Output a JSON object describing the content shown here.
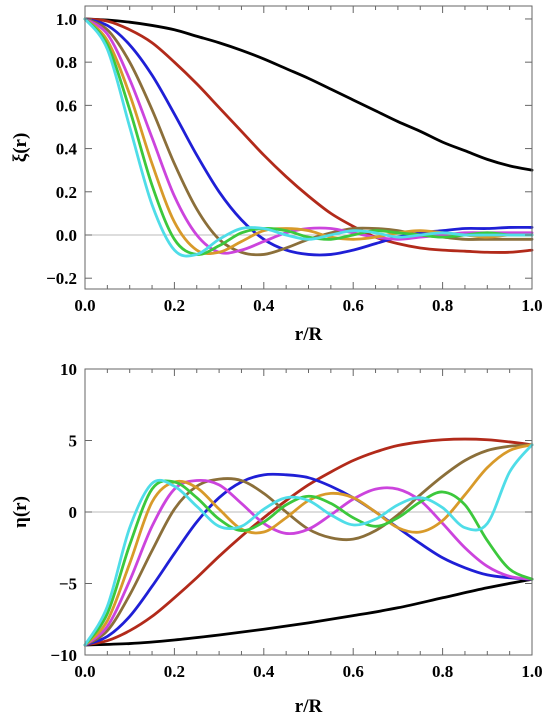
{
  "chart_data": [
    {
      "type": "line",
      "title": "",
      "xlabel": "r/R",
      "ylabel": "ξ(r)",
      "xlim": [
        0.0,
        1.0
      ],
      "ylim": [
        -0.25,
        1.06
      ],
      "x_ticks": [
        "0.0",
        "0.2",
        "0.4",
        "0.6",
        "0.8",
        "1.0"
      ],
      "y_ticks": [
        "1.0",
        "0.8",
        "0.6",
        "0.4",
        "0.2",
        "0.0",
        "−0.2"
      ],
      "x_tick_values": [
        0,
        0.2,
        0.4,
        0.6,
        0.8,
        1.0
      ],
      "y_tick_values": [
        1.0,
        0.8,
        0.6,
        0.4,
        0.2,
        0.0,
        -0.2
      ],
      "zero_line": true,
      "grid": false,
      "legend": "none",
      "series": [
        {
          "color": "#000000",
          "x": [
            0,
            0.05,
            0.1,
            0.15,
            0.2,
            0.25,
            0.3,
            0.35,
            0.4,
            0.45,
            0.5,
            0.55,
            0.6,
            0.65,
            0.7,
            0.75,
            0.8,
            0.85,
            0.9,
            0.95,
            1.0
          ],
          "y": [
            1.0,
            0.995,
            0.985,
            0.97,
            0.95,
            0.92,
            0.89,
            0.855,
            0.815,
            0.77,
            0.725,
            0.675,
            0.625,
            0.575,
            0.525,
            0.48,
            0.43,
            0.39,
            0.35,
            0.32,
            0.3
          ]
        },
        {
          "color": "#b22a1a",
          "x": [
            0,
            0.05,
            0.1,
            0.15,
            0.2,
            0.25,
            0.3,
            0.35,
            0.4,
            0.45,
            0.5,
            0.55,
            0.6,
            0.65,
            0.7,
            0.75,
            0.8,
            0.85,
            0.9,
            0.95,
            1.0
          ],
          "y": [
            1.0,
            0.99,
            0.95,
            0.89,
            0.8,
            0.7,
            0.59,
            0.48,
            0.37,
            0.27,
            0.18,
            0.1,
            0.04,
            -0.01,
            -0.04,
            -0.06,
            -0.07,
            -0.075,
            -0.08,
            -0.08,
            -0.07
          ]
        },
        {
          "color": "#1f1fd6",
          "x": [
            0,
            0.05,
            0.1,
            0.15,
            0.2,
            0.25,
            0.3,
            0.35,
            0.4,
            0.45,
            0.5,
            0.55,
            0.6,
            0.65,
            0.7,
            0.75,
            0.8,
            0.85,
            0.9,
            0.95,
            1.0
          ],
          "y": [
            1.0,
            0.97,
            0.88,
            0.74,
            0.56,
            0.37,
            0.2,
            0.07,
            -0.02,
            -0.07,
            -0.09,
            -0.09,
            -0.07,
            -0.04,
            -0.01,
            0.01,
            0.02,
            0.03,
            0.03,
            0.035,
            0.035
          ]
        },
        {
          "color": "#8b6f3a",
          "x": [
            0,
            0.05,
            0.1,
            0.15,
            0.2,
            0.25,
            0.3,
            0.35,
            0.4,
            0.45,
            0.5,
            0.55,
            0.6,
            0.65,
            0.7,
            0.75,
            0.8,
            0.85,
            0.9,
            0.95,
            1.0
          ],
          "y": [
            1.0,
            0.95,
            0.8,
            0.58,
            0.33,
            0.12,
            -0.02,
            -0.08,
            -0.09,
            -0.06,
            -0.02,
            0.01,
            0.03,
            0.03,
            0.02,
            0.0,
            -0.01,
            -0.02,
            -0.02,
            -0.02,
            -0.02
          ]
        },
        {
          "color": "#cc44dd",
          "x": [
            0,
            0.05,
            0.1,
            0.15,
            0.2,
            0.25,
            0.3,
            0.35,
            0.4,
            0.45,
            0.5,
            0.55,
            0.6,
            0.65,
            0.7,
            0.75,
            0.8,
            0.85,
            0.9,
            0.95,
            1.0
          ],
          "y": [
            1.0,
            0.93,
            0.72,
            0.45,
            0.18,
            0.0,
            -0.08,
            -0.07,
            -0.03,
            0.01,
            0.03,
            0.03,
            0.01,
            -0.01,
            -0.02,
            -0.01,
            0.0,
            0.01,
            0.01,
            0.01,
            0.01
          ]
        },
        {
          "color": "#d89a2a",
          "x": [
            0,
            0.05,
            0.1,
            0.15,
            0.2,
            0.25,
            0.3,
            0.35,
            0.4,
            0.45,
            0.5,
            0.55,
            0.6,
            0.65,
            0.7,
            0.75,
            0.8,
            0.85,
            0.9,
            0.95,
            1.0
          ],
          "y": [
            1.0,
            0.9,
            0.65,
            0.33,
            0.06,
            -0.07,
            -0.08,
            -0.03,
            0.02,
            0.03,
            0.02,
            -0.01,
            -0.02,
            -0.01,
            0.01,
            0.02,
            0.01,
            0.0,
            -0.01,
            0.0,
            0.0
          ]
        },
        {
          "color": "#3cc83c",
          "x": [
            0,
            0.05,
            0.1,
            0.15,
            0.2,
            0.25,
            0.3,
            0.35,
            0.4,
            0.45,
            0.5,
            0.55,
            0.6,
            0.65,
            0.7,
            0.75,
            0.8,
            0.85,
            0.9,
            0.95,
            1.0
          ],
          "y": [
            1.0,
            0.88,
            0.58,
            0.23,
            -0.02,
            -0.09,
            -0.05,
            0.01,
            0.03,
            0.02,
            -0.01,
            -0.02,
            0.0,
            0.02,
            0.01,
            0.0,
            -0.01,
            0.0,
            0.01,
            0.0,
            0.0
          ]
        },
        {
          "color": "#4fdde8",
          "x": [
            0,
            0.05,
            0.1,
            0.15,
            0.2,
            0.25,
            0.3,
            0.35,
            0.4,
            0.45,
            0.5,
            0.55,
            0.6,
            0.65,
            0.7,
            0.75,
            0.8,
            0.85,
            0.9,
            0.95,
            1.0
          ],
          "y": [
            1.0,
            0.86,
            0.5,
            0.14,
            -0.07,
            -0.09,
            -0.02,
            0.03,
            0.03,
            0.0,
            -0.02,
            0.0,
            0.02,
            0.01,
            -0.01,
            0.0,
            0.01,
            0.0,
            0.0,
            0.0,
            0.0
          ]
        }
      ]
    },
    {
      "type": "line",
      "title": "",
      "xlabel": "r/R",
      "ylabel": "η(r)",
      "xlim": [
        0.0,
        1.0
      ],
      "ylim": [
        -10,
        10
      ],
      "x_ticks": [
        "0.0",
        "0.2",
        "0.4",
        "0.6",
        "0.8",
        "1.0"
      ],
      "y_ticks": [
        "10",
        "5",
        "0",
        "−5",
        "−10"
      ],
      "x_tick_values": [
        0,
        0.2,
        0.4,
        0.6,
        0.8,
        1.0
      ],
      "y_tick_values": [
        10,
        5,
        0,
        -5,
        -10
      ],
      "zero_line": true,
      "grid": false,
      "legend": "none",
      "series": [
        {
          "color": "#000000",
          "x": [
            0,
            0.1,
            0.2,
            0.3,
            0.4,
            0.5,
            0.6,
            0.7,
            0.8,
            0.9,
            1.0
          ],
          "y": [
            -9.3,
            -9.2,
            -8.95,
            -8.6,
            -8.2,
            -7.75,
            -7.25,
            -6.7,
            -6.0,
            -5.3,
            -4.7
          ]
        },
        {
          "color": "#b22a1a",
          "x": [
            0,
            0.05,
            0.1,
            0.15,
            0.2,
            0.25,
            0.3,
            0.35,
            0.4,
            0.45,
            0.5,
            0.55,
            0.6,
            0.65,
            0.7,
            0.75,
            0.8,
            0.85,
            0.9,
            0.95,
            1.0
          ],
          "y": [
            -9.3,
            -9.0,
            -8.3,
            -7.3,
            -6.0,
            -4.6,
            -3.1,
            -1.7,
            -0.4,
            0.8,
            1.9,
            2.8,
            3.6,
            4.2,
            4.65,
            4.9,
            5.05,
            5.1,
            5.05,
            4.9,
            4.7
          ]
        },
        {
          "color": "#1f1fd6",
          "x": [
            0,
            0.05,
            0.1,
            0.15,
            0.2,
            0.25,
            0.3,
            0.35,
            0.4,
            0.45,
            0.5,
            0.55,
            0.6,
            0.65,
            0.7,
            0.75,
            0.8,
            0.85,
            0.9,
            0.95,
            1.0
          ],
          "y": [
            -9.3,
            -8.7,
            -7.3,
            -5.2,
            -2.9,
            -0.7,
            1.0,
            2.1,
            2.6,
            2.6,
            2.4,
            1.8,
            1.0,
            0.0,
            -1.1,
            -2.2,
            -3.2,
            -3.9,
            -4.4,
            -4.6,
            -4.7
          ]
        },
        {
          "color": "#8b6f3a",
          "x": [
            0,
            0.05,
            0.1,
            0.15,
            0.2,
            0.25,
            0.3,
            0.35,
            0.4,
            0.45,
            0.5,
            0.55,
            0.6,
            0.65,
            0.7,
            0.75,
            0.8,
            0.85,
            0.9,
            0.95,
            1.0
          ],
          "y": [
            -9.3,
            -8.3,
            -5.8,
            -2.7,
            0.2,
            1.8,
            2.3,
            2.2,
            1.3,
            0.0,
            -1.2,
            -1.8,
            -1.9,
            -1.3,
            -0.2,
            1.2,
            2.5,
            3.6,
            4.3,
            4.6,
            4.7
          ]
        },
        {
          "color": "#cc44dd",
          "x": [
            0,
            0.05,
            0.1,
            0.15,
            0.2,
            0.25,
            0.3,
            0.35,
            0.4,
            0.45,
            0.5,
            0.55,
            0.6,
            0.65,
            0.7,
            0.75,
            0.8,
            0.85,
            0.9,
            0.95,
            1.0
          ],
          "y": [
            -9.3,
            -8.0,
            -4.8,
            -1.0,
            1.6,
            2.2,
            1.9,
            0.6,
            -0.8,
            -1.5,
            -1.2,
            -0.2,
            0.9,
            1.6,
            1.6,
            0.8,
            -0.8,
            -2.5,
            -3.8,
            -4.5,
            -4.7
          ]
        },
        {
          "color": "#d89a2a",
          "x": [
            0,
            0.05,
            0.1,
            0.15,
            0.2,
            0.25,
            0.3,
            0.35,
            0.4,
            0.45,
            0.5,
            0.55,
            0.6,
            0.65,
            0.7,
            0.75,
            0.8,
            0.85,
            0.9,
            0.95,
            1.0
          ],
          "y": [
            -9.3,
            -7.6,
            -3.6,
            0.7,
            2.1,
            1.7,
            0.2,
            -1.2,
            -1.4,
            -0.4,
            0.8,
            1.3,
            1.0,
            0.0,
            -1.1,
            -1.4,
            -0.6,
            1.2,
            3.1,
            4.3,
            4.7
          ]
        },
        {
          "color": "#3cc83c",
          "x": [
            0,
            0.05,
            0.1,
            0.15,
            0.2,
            0.25,
            0.3,
            0.35,
            0.4,
            0.45,
            0.5,
            0.55,
            0.6,
            0.65,
            0.7,
            0.75,
            0.8,
            0.85,
            0.9,
            0.95,
            1.0
          ],
          "y": [
            -9.3,
            -7.1,
            -2.3,
            1.6,
            2.1,
            1.0,
            -0.5,
            -1.3,
            -0.7,
            0.5,
            1.1,
            0.6,
            -0.4,
            -1.0,
            -0.4,
            0.7,
            1.4,
            0.5,
            -2.0,
            -4.0,
            -4.7
          ]
        },
        {
          "color": "#4fdde8",
          "x": [
            0,
            0.05,
            0.1,
            0.15,
            0.2,
            0.25,
            0.3,
            0.35,
            0.4,
            0.45,
            0.5,
            0.55,
            0.6,
            0.65,
            0.7,
            0.75,
            0.8,
            0.85,
            0.9,
            0.95,
            1.0
          ],
          "y": [
            -9.3,
            -6.6,
            -1.1,
            2.0,
            1.8,
            0.4,
            -1.0,
            -1.0,
            0.2,
            1.0,
            0.8,
            -0.2,
            -0.9,
            -0.5,
            0.5,
            1.0,
            0.3,
            -1.1,
            -0.8,
            2.8,
            4.7
          ]
        }
      ]
    }
  ]
}
